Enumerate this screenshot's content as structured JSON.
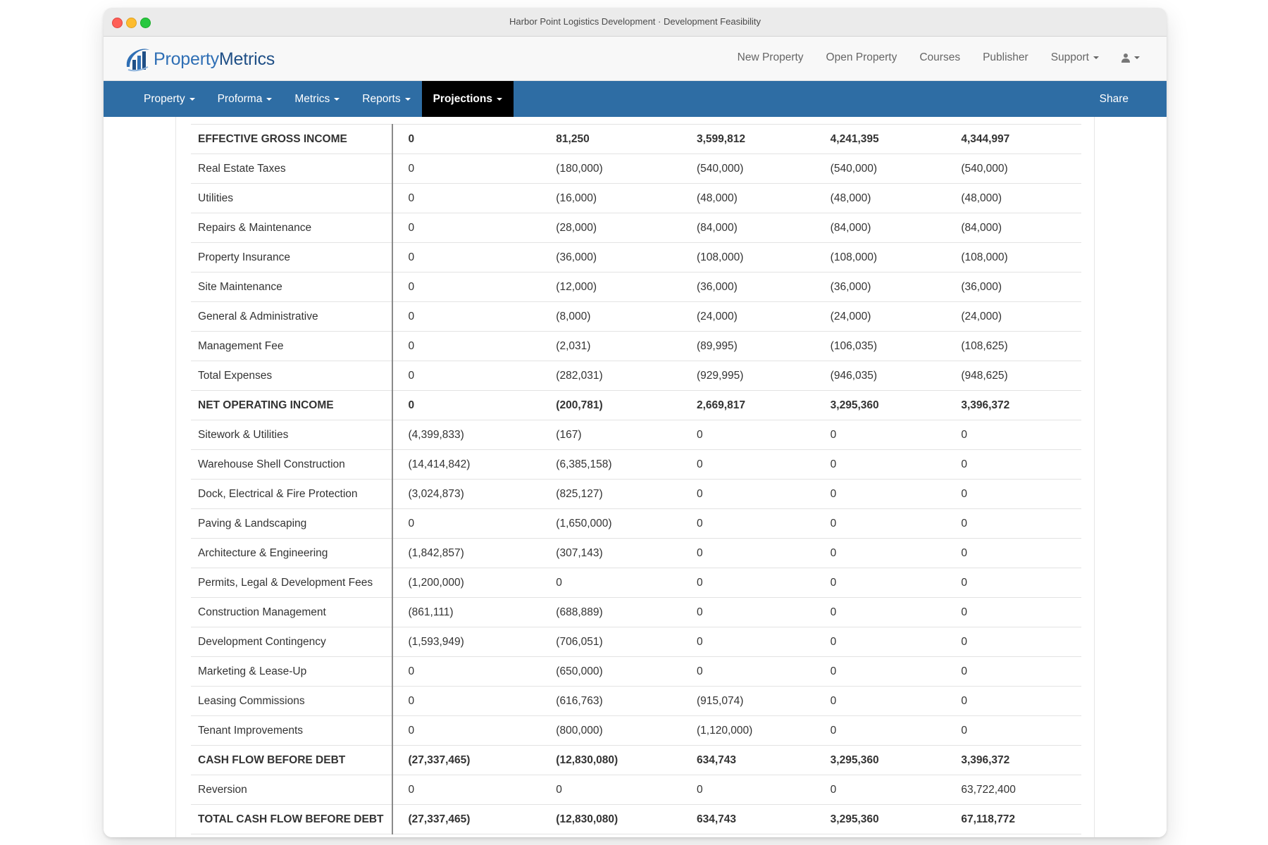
{
  "window": {
    "title": "Harbor Point Logistics Development · Development Feasibility"
  },
  "brand": {
    "name_part1": "Property",
    "name_part2": "Metrics",
    "colors": {
      "primary": "#2f6fb5",
      "dark": "#1f4f86",
      "nav": "#2e6da4"
    }
  },
  "topnav": {
    "items": [
      {
        "label": "New Property",
        "dropdown": false
      },
      {
        "label": "Open Property",
        "dropdown": false
      },
      {
        "label": "Courses",
        "dropdown": false
      },
      {
        "label": "Publisher",
        "dropdown": false
      },
      {
        "label": "Support",
        "dropdown": true
      }
    ],
    "user_icon": "user-icon"
  },
  "mainnav": {
    "items": [
      {
        "label": "Property",
        "active": false
      },
      {
        "label": "Proforma",
        "active": false
      },
      {
        "label": "Metrics",
        "active": false
      },
      {
        "label": "Reports",
        "active": false
      },
      {
        "label": "Projections",
        "active": true
      }
    ],
    "share_label": "Share"
  },
  "table": {
    "rows": [
      {
        "label": "EFFECTIVE GROSS INCOME",
        "bold": true,
        "values": [
          "0",
          "81,250",
          "3,599,812",
          "4,241,395",
          "4,344,997"
        ]
      },
      {
        "label": "Real Estate Taxes",
        "bold": false,
        "values": [
          "0",
          "(180,000)",
          "(540,000)",
          "(540,000)",
          "(540,000)"
        ]
      },
      {
        "label": "Utilities",
        "bold": false,
        "values": [
          "0",
          "(16,000)",
          "(48,000)",
          "(48,000)",
          "(48,000)"
        ]
      },
      {
        "label": "Repairs & Maintenance",
        "bold": false,
        "values": [
          "0",
          "(28,000)",
          "(84,000)",
          "(84,000)",
          "(84,000)"
        ]
      },
      {
        "label": "Property Insurance",
        "bold": false,
        "values": [
          "0",
          "(36,000)",
          "(108,000)",
          "(108,000)",
          "(108,000)"
        ]
      },
      {
        "label": "Site Maintenance",
        "bold": false,
        "values": [
          "0",
          "(12,000)",
          "(36,000)",
          "(36,000)",
          "(36,000)"
        ]
      },
      {
        "label": "General & Administrative",
        "bold": false,
        "values": [
          "0",
          "(8,000)",
          "(24,000)",
          "(24,000)",
          "(24,000)"
        ]
      },
      {
        "label": "Management Fee",
        "bold": false,
        "values": [
          "0",
          "(2,031)",
          "(89,995)",
          "(106,035)",
          "(108,625)"
        ]
      },
      {
        "label": "Total Expenses",
        "bold": false,
        "values": [
          "0",
          "(282,031)",
          "(929,995)",
          "(946,035)",
          "(948,625)"
        ]
      },
      {
        "label": "NET OPERATING INCOME",
        "bold": true,
        "values": [
          "0",
          "(200,781)",
          "2,669,817",
          "3,295,360",
          "3,396,372"
        ]
      },
      {
        "label": "Sitework & Utilities",
        "bold": false,
        "values": [
          "(4,399,833)",
          "(167)",
          "0",
          "0",
          "0"
        ]
      },
      {
        "label": "Warehouse Shell Construction",
        "bold": false,
        "values": [
          "(14,414,842)",
          "(6,385,158)",
          "0",
          "0",
          "0"
        ]
      },
      {
        "label": "Dock, Electrical & Fire Protection",
        "bold": false,
        "values": [
          "(3,024,873)",
          "(825,127)",
          "0",
          "0",
          "0"
        ]
      },
      {
        "label": "Paving & Landscaping",
        "bold": false,
        "values": [
          "0",
          "(1,650,000)",
          "0",
          "0",
          "0"
        ]
      },
      {
        "label": "Architecture & Engineering",
        "bold": false,
        "values": [
          "(1,842,857)",
          "(307,143)",
          "0",
          "0",
          "0"
        ]
      },
      {
        "label": "Permits, Legal & Development Fees",
        "bold": false,
        "values": [
          "(1,200,000)",
          "0",
          "0",
          "0",
          "0"
        ]
      },
      {
        "label": "Construction Management",
        "bold": false,
        "values": [
          "(861,111)",
          "(688,889)",
          "0",
          "0",
          "0"
        ]
      },
      {
        "label": "Development Contingency",
        "bold": false,
        "values": [
          "(1,593,949)",
          "(706,051)",
          "0",
          "0",
          "0"
        ]
      },
      {
        "label": "Marketing & Lease-Up",
        "bold": false,
        "values": [
          "0",
          "(650,000)",
          "0",
          "0",
          "0"
        ]
      },
      {
        "label": "Leasing Commissions",
        "bold": false,
        "values": [
          "0",
          "(616,763)",
          "(915,074)",
          "0",
          "0"
        ]
      },
      {
        "label": "Tenant Improvements",
        "bold": false,
        "values": [
          "0",
          "(800,000)",
          "(1,120,000)",
          "0",
          "0"
        ]
      },
      {
        "label": "CASH FLOW BEFORE DEBT",
        "bold": true,
        "values": [
          "(27,337,465)",
          "(12,830,080)",
          "634,743",
          "3,295,360",
          "3,396,372"
        ]
      },
      {
        "label": "Reversion",
        "bold": false,
        "values": [
          "0",
          "0",
          "0",
          "0",
          "63,722,400"
        ]
      },
      {
        "label": "TOTAL CASH FLOW BEFORE DEBT",
        "bold": true,
        "values": [
          "(27,337,465)",
          "(12,830,080)",
          "634,743",
          "3,295,360",
          "67,118,772"
        ]
      }
    ]
  }
}
